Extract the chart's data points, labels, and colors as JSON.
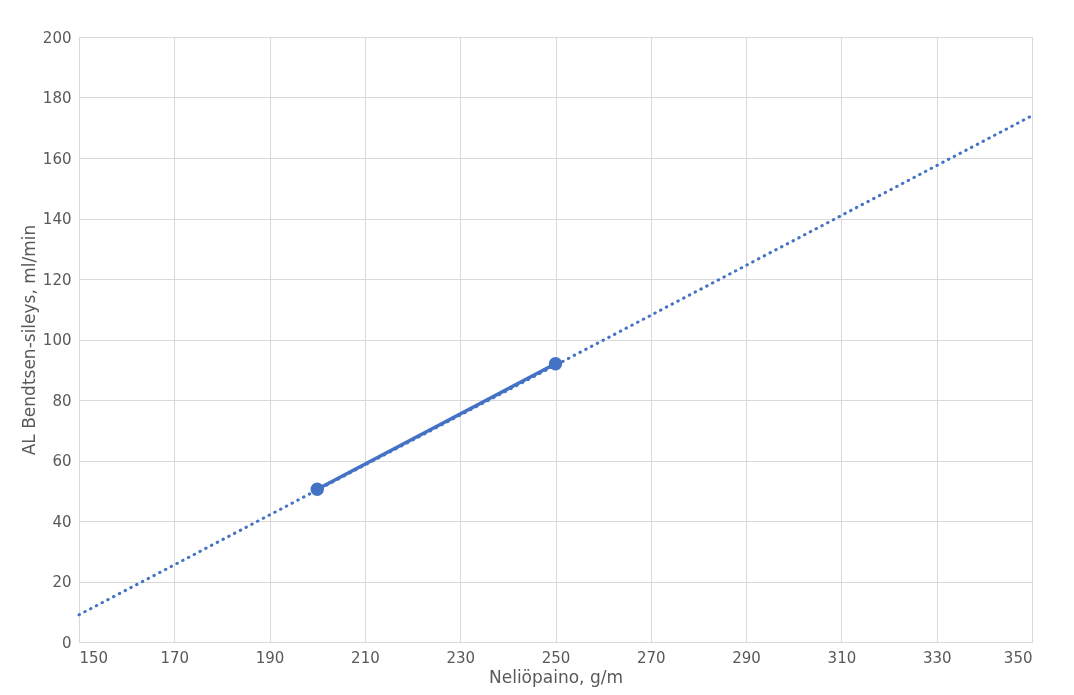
{
  "chart_data": {
    "type": "line",
    "xlabel": "Neliöpaino, g/m",
    "ylabel": "AL Bendtsen-sileys, ml/min",
    "xlim": [
      150,
      350
    ],
    "xticks": [
      150,
      170,
      190,
      210,
      230,
      250,
      270,
      290,
      310,
      330,
      350
    ],
    "ylim": [
      0,
      200
    ],
    "yticks": [
      0,
      20,
      40,
      60,
      80,
      100,
      120,
      140,
      160,
      180,
      200
    ],
    "grid": true,
    "series": [
      {
        "color": "#4472c4",
        "x": [
          200,
          250
        ],
        "values": [
          50.5,
          92
        ],
        "marker": "circle",
        "line_style": "solid"
      },
      {
        "color": "#4472c4",
        "x": [
          150,
          350
        ],
        "values": [
          9,
          174
        ],
        "marker": "none",
        "line_style": "dotted"
      }
    ]
  }
}
